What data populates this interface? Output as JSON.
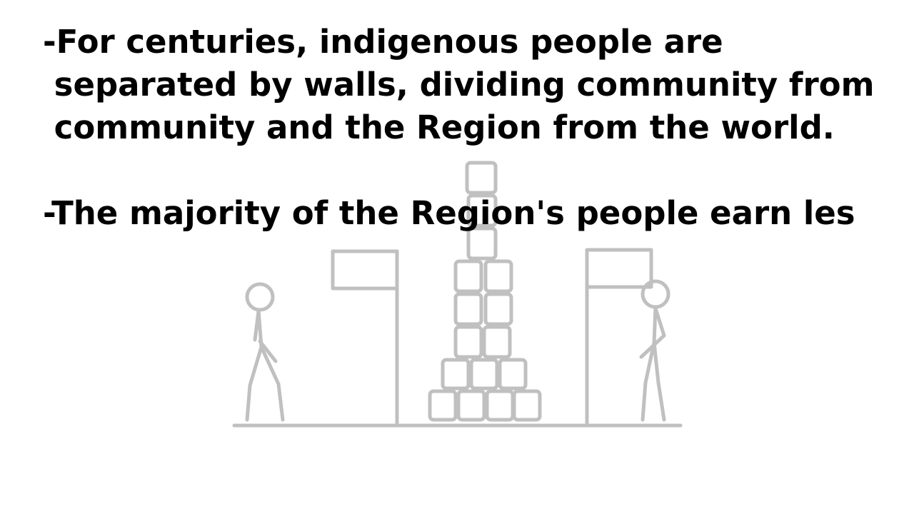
{
  "slide": {
    "lines": [
      "-For centuries, indigenous people are",
      " separated by walls, dividing community from",
      " community and the Region from the world.",
      "-The majority of the Region's people earn les"
    ]
  },
  "colors": {
    "text": "#000000",
    "drawing": "#c0c0c0",
    "background": "#ffffff"
  }
}
